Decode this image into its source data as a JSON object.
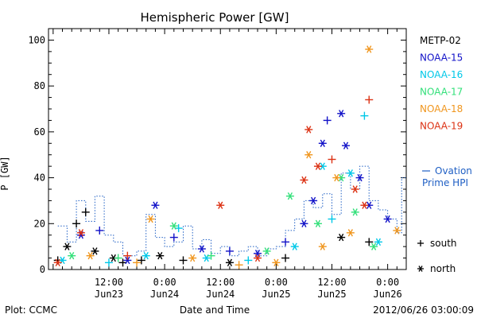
{
  "chart_data": {
    "type": "scatter",
    "title": "Hemispheric Power [GW]",
    "ylabel": "P [GW]",
    "xlabel": "Date and Time",
    "ylim": [
      0,
      105
    ],
    "yticks": [
      0,
      20,
      40,
      60,
      80,
      100
    ],
    "xticks": [
      {
        "x": "2012-06-23 12:00",
        "time": "12:00",
        "date": "Jun23"
      },
      {
        "x": "2012-06-24 00:00",
        "time": "0:00",
        "date": "Jun24"
      },
      {
        "x": "2012-06-24 12:00",
        "time": "12:00",
        "date": "Jun24"
      },
      {
        "x": "2012-06-25 00:00",
        "time": "0:00",
        "date": "Jun25"
      },
      {
        "x": "2012-06-25 12:00",
        "time": "12:00",
        "date": "Jun25"
      },
      {
        "x": "2012-06-26 00:00",
        "time": "0:00",
        "date": "Jun26"
      }
    ],
    "xlim": [
      "2012-06-22 23:00",
      "2012-06-26 04:00"
    ],
    "grid": false,
    "legend_placement": "right",
    "symbols": {
      "south": "+",
      "north": "*"
    },
    "symbol_labels": {
      "south": "south",
      "north": "north"
    },
    "series": [
      {
        "name": "METP-02",
        "color": "#000000",
        "points": [
          {
            "x": "2012-06-23 01:00",
            "y": 4,
            "hemi": "south"
          },
          {
            "x": "2012-06-23 03:00",
            "y": 10,
            "hemi": "north"
          },
          {
            "x": "2012-06-23 05:00",
            "y": 20,
            "hemi": "south"
          },
          {
            "x": "2012-06-23 07:00",
            "y": 25,
            "hemi": "south"
          },
          {
            "x": "2012-06-23 09:00",
            "y": 8,
            "hemi": "north"
          },
          {
            "x": "2012-06-23 13:00",
            "y": 5,
            "hemi": "north"
          },
          {
            "x": "2012-06-23 15:00",
            "y": 3,
            "hemi": "south"
          },
          {
            "x": "2012-06-23 19:00",
            "y": 4,
            "hemi": "south"
          },
          {
            "x": "2012-06-23 23:00",
            "y": 6,
            "hemi": "north"
          },
          {
            "x": "2012-06-24 04:00",
            "y": 4,
            "hemi": "south"
          },
          {
            "x": "2012-06-24 14:00",
            "y": 3,
            "hemi": "north"
          },
          {
            "x": "2012-06-25 02:00",
            "y": 5,
            "hemi": "south"
          },
          {
            "x": "2012-06-25 14:00",
            "y": 14,
            "hemi": "north"
          },
          {
            "x": "2012-06-25 20:00",
            "y": 12,
            "hemi": "south"
          }
        ]
      },
      {
        "name": "NOAA-15",
        "color": "#1212c8",
        "points": [
          {
            "x": "2012-06-23 06:00",
            "y": 15,
            "hemi": "north"
          },
          {
            "x": "2012-06-23 10:00",
            "y": 17,
            "hemi": "south"
          },
          {
            "x": "2012-06-23 16:00",
            "y": 4,
            "hemi": "north"
          },
          {
            "x": "2012-06-23 22:00",
            "y": 28,
            "hemi": "north"
          },
          {
            "x": "2012-06-24 02:00",
            "y": 14,
            "hemi": "south"
          },
          {
            "x": "2012-06-24 08:00",
            "y": 9,
            "hemi": "north"
          },
          {
            "x": "2012-06-24 14:00",
            "y": 8,
            "hemi": "south"
          },
          {
            "x": "2012-06-24 20:00",
            "y": 7,
            "hemi": "north"
          },
          {
            "x": "2012-06-25 02:00",
            "y": 12,
            "hemi": "south"
          },
          {
            "x": "2012-06-25 06:00",
            "y": 20,
            "hemi": "north"
          },
          {
            "x": "2012-06-25 08:00",
            "y": 30,
            "hemi": "north"
          },
          {
            "x": "2012-06-25 10:00",
            "y": 55,
            "hemi": "north"
          },
          {
            "x": "2012-06-25 11:00",
            "y": 65,
            "hemi": "south"
          },
          {
            "x": "2012-06-25 14:00",
            "y": 68,
            "hemi": "north"
          },
          {
            "x": "2012-06-25 15:00",
            "y": 54,
            "hemi": "north"
          },
          {
            "x": "2012-06-25 18:00",
            "y": 40,
            "hemi": "north"
          },
          {
            "x": "2012-06-25 20:00",
            "y": 28,
            "hemi": "north"
          },
          {
            "x": "2012-06-26 00:00",
            "y": 22,
            "hemi": "north"
          }
        ]
      },
      {
        "name": "NOAA-16",
        "color": "#00c8e8",
        "points": [
          {
            "x": "2012-06-23 02:00",
            "y": 4,
            "hemi": "north"
          },
          {
            "x": "2012-06-23 12:00",
            "y": 3,
            "hemi": "south"
          },
          {
            "x": "2012-06-23 20:00",
            "y": 6,
            "hemi": "north"
          },
          {
            "x": "2012-06-24 03:00",
            "y": 18,
            "hemi": "south"
          },
          {
            "x": "2012-06-24 09:00",
            "y": 5,
            "hemi": "north"
          },
          {
            "x": "2012-06-24 18:00",
            "y": 4,
            "hemi": "south"
          },
          {
            "x": "2012-06-25 04:00",
            "y": 10,
            "hemi": "north"
          },
          {
            "x": "2012-06-25 10:00",
            "y": 45,
            "hemi": "north"
          },
          {
            "x": "2012-06-25 12:00",
            "y": 22,
            "hemi": "south"
          },
          {
            "x": "2012-06-25 16:00",
            "y": 42,
            "hemi": "north"
          },
          {
            "x": "2012-06-25 19:00",
            "y": 67,
            "hemi": "south"
          },
          {
            "x": "2012-06-25 22:00",
            "y": 12,
            "hemi": "north"
          }
        ]
      },
      {
        "name": "NOAA-17",
        "color": "#33e07a",
        "points": [
          {
            "x": "2012-06-23 04:00",
            "y": 6,
            "hemi": "north"
          },
          {
            "x": "2012-06-23 14:00",
            "y": 5,
            "hemi": "south"
          },
          {
            "x": "2012-06-24 02:00",
            "y": 19,
            "hemi": "north"
          },
          {
            "x": "2012-06-24 10:00",
            "y": 6,
            "hemi": "south"
          },
          {
            "x": "2012-06-24 22:00",
            "y": 8,
            "hemi": "north"
          },
          {
            "x": "2012-06-25 03:00",
            "y": 32,
            "hemi": "north"
          },
          {
            "x": "2012-06-25 09:00",
            "y": 20,
            "hemi": "north"
          },
          {
            "x": "2012-06-25 14:00",
            "y": 40,
            "hemi": "north"
          },
          {
            "x": "2012-06-25 17:00",
            "y": 25,
            "hemi": "north"
          },
          {
            "x": "2012-06-25 21:00",
            "y": 10,
            "hemi": "north"
          }
        ]
      },
      {
        "name": "NOAA-18",
        "color": "#f0961e",
        "points": [
          {
            "x": "2012-06-23 08:00",
            "y": 6,
            "hemi": "north"
          },
          {
            "x": "2012-06-23 18:00",
            "y": 3,
            "hemi": "south"
          },
          {
            "x": "2012-06-23 21:00",
            "y": 22,
            "hemi": "north"
          },
          {
            "x": "2012-06-24 06:00",
            "y": 5,
            "hemi": "north"
          },
          {
            "x": "2012-06-24 16:00",
            "y": 2,
            "hemi": "south"
          },
          {
            "x": "2012-06-25 00:00",
            "y": 3,
            "hemi": "north"
          },
          {
            "x": "2012-06-25 07:00",
            "y": 50,
            "hemi": "north"
          },
          {
            "x": "2012-06-25 10:00",
            "y": 10,
            "hemi": "north"
          },
          {
            "x": "2012-06-25 13:00",
            "y": 40,
            "hemi": "north"
          },
          {
            "x": "2012-06-25 16:00",
            "y": 16,
            "hemi": "north"
          },
          {
            "x": "2012-06-25 20:00",
            "y": 96,
            "hemi": "north"
          },
          {
            "x": "2012-06-26 02:00",
            "y": 17,
            "hemi": "north"
          }
        ]
      },
      {
        "name": "NOAA-19",
        "color": "#dc3214",
        "points": [
          {
            "x": "2012-06-23 01:00",
            "y": 3,
            "hemi": "north"
          },
          {
            "x": "2012-06-23 06:00",
            "y": 16,
            "hemi": "north"
          },
          {
            "x": "2012-06-23 16:00",
            "y": 6,
            "hemi": "south"
          },
          {
            "x": "2012-06-24 12:00",
            "y": 28,
            "hemi": "north"
          },
          {
            "x": "2012-06-24 20:00",
            "y": 5,
            "hemi": "north"
          },
          {
            "x": "2012-06-25 06:00",
            "y": 39,
            "hemi": "north"
          },
          {
            "x": "2012-06-25 07:00",
            "y": 61,
            "hemi": "north"
          },
          {
            "x": "2012-06-25 09:00",
            "y": 45,
            "hemi": "north"
          },
          {
            "x": "2012-06-25 12:00",
            "y": 48,
            "hemi": "south"
          },
          {
            "x": "2012-06-25 17:00",
            "y": 35,
            "hemi": "north"
          },
          {
            "x": "2012-06-25 19:00",
            "y": 28,
            "hemi": "north"
          },
          {
            "x": "2012-06-25 20:00",
            "y": 74,
            "hemi": "south"
          }
        ]
      }
    ],
    "ovation": {
      "name": "Ovation Prime HPI",
      "label_line1": "Ovation",
      "label_line2": "Prime HPI",
      "color": "#1f5fc4",
      "steps": [
        {
          "x": "2012-06-23 01:00",
          "y": 19
        },
        {
          "x": "2012-06-23 03:00",
          "y": 12
        },
        {
          "x": "2012-06-23 05:00",
          "y": 30
        },
        {
          "x": "2012-06-23 07:00",
          "y": 21
        },
        {
          "x": "2012-06-23 09:00",
          "y": 32
        },
        {
          "x": "2012-06-23 11:00",
          "y": 15
        },
        {
          "x": "2012-06-23 13:00",
          "y": 12
        },
        {
          "x": "2012-06-23 15:00",
          "y": 6
        },
        {
          "x": "2012-06-23 18:00",
          "y": 8
        },
        {
          "x": "2012-06-23 20:00",
          "y": 24
        },
        {
          "x": "2012-06-23 22:00",
          "y": 14
        },
        {
          "x": "2012-06-24 00:00",
          "y": 10
        },
        {
          "x": "2012-06-24 02:00",
          "y": 12
        },
        {
          "x": "2012-06-24 04:00",
          "y": 19
        },
        {
          "x": "2012-06-24 06:00",
          "y": 9
        },
        {
          "x": "2012-06-24 08:00",
          "y": 13
        },
        {
          "x": "2012-06-24 10:00",
          "y": 7
        },
        {
          "x": "2012-06-24 12:00",
          "y": 10
        },
        {
          "x": "2012-06-24 14:00",
          "y": 6
        },
        {
          "x": "2012-06-24 16:00",
          "y": 8
        },
        {
          "x": "2012-06-24 18:00",
          "y": 10
        },
        {
          "x": "2012-06-24 20:00",
          "y": 6
        },
        {
          "x": "2012-06-24 22:00",
          "y": 9
        },
        {
          "x": "2012-06-25 00:00",
          "y": 10
        },
        {
          "x": "2012-06-25 02:00",
          "y": 17
        },
        {
          "x": "2012-06-25 04:00",
          "y": 22
        },
        {
          "x": "2012-06-25 06:00",
          "y": 30
        },
        {
          "x": "2012-06-25 08:00",
          "y": 27
        },
        {
          "x": "2012-06-25 10:00",
          "y": 33
        },
        {
          "x": "2012-06-25 12:00",
          "y": 24
        },
        {
          "x": "2012-06-25 14:00",
          "y": 42
        },
        {
          "x": "2012-06-25 16:00",
          "y": 35
        },
        {
          "x": "2012-06-25 18:00",
          "y": 45
        },
        {
          "x": "2012-06-25 20:00",
          "y": 30
        },
        {
          "x": "2012-06-25 22:00",
          "y": 26
        },
        {
          "x": "2012-06-26 00:00",
          "y": 22
        },
        {
          "x": "2012-06-26 02:00",
          "y": 16
        },
        {
          "x": "2012-06-26 03:00",
          "y": 40
        }
      ]
    }
  },
  "footer": {
    "plot_credit": "Plot: CCMC",
    "timestamp": "2012/06/26 03:00:09"
  }
}
